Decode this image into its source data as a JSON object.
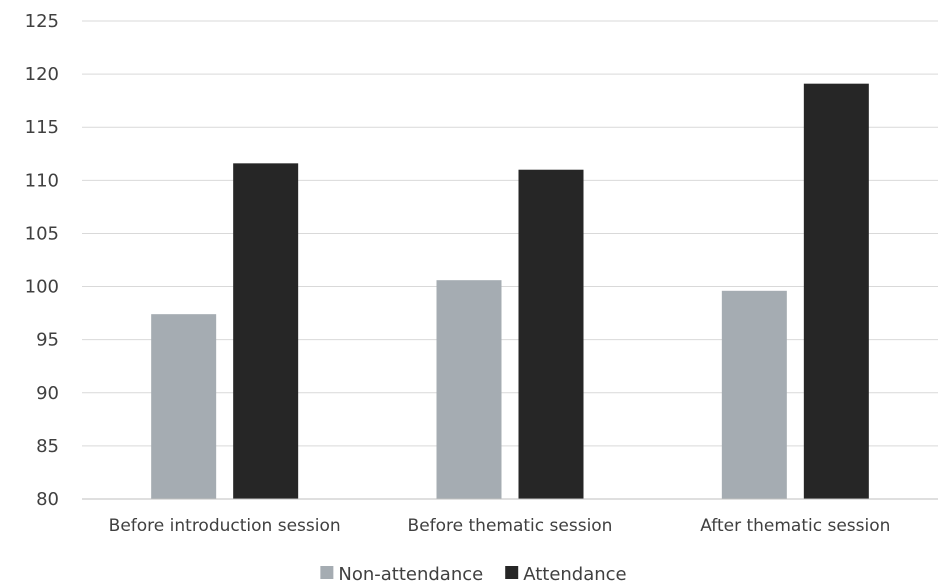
{
  "chart_data": {
    "type": "bar",
    "title": "",
    "xlabel": "",
    "ylabel": "",
    "categories": [
      "Before introduction session",
      "Before thematic session",
      "After thematic session"
    ],
    "series": [
      {
        "name": "Non-attendance",
        "color": "#a5acb2",
        "values": [
          97.4,
          100.6,
          99.6
        ]
      },
      {
        "name": "Attendance",
        "color": "#262626",
        "values": [
          111.6,
          111.0,
          119.1
        ]
      }
    ],
    "ylim": [
      80,
      125
    ],
    "yticks": [
      "80",
      "85",
      "90",
      "95",
      "100",
      "105",
      "110",
      "115",
      "120",
      "125"
    ],
    "grid": true,
    "legend_position": "bottom"
  }
}
